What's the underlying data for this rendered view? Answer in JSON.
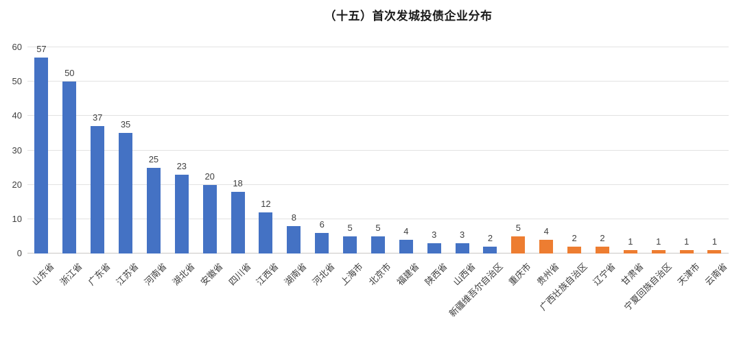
{
  "page": {
    "background": "#FFFFFF"
  },
  "chart_data": {
    "type": "bar",
    "title": "（十五）首次发城投债企业分布",
    "categories": [
      "山东省",
      "浙江省",
      "广东省",
      "江苏省",
      "河南省",
      "湖北省",
      "安徽省",
      "四川省",
      "江西省",
      "湖南省",
      "河北省",
      "上海市",
      "北京市",
      "福建省",
      "陕西省",
      "山西省",
      "新疆维吾尔自治区",
      "重庆市",
      "贵州省",
      "广西壮族自治区",
      "辽宁省",
      "甘肃省",
      "宁夏回族自治区",
      "天津市",
      "云南省"
    ],
    "values": [
      57,
      50,
      37,
      35,
      25,
      23,
      20,
      18,
      12,
      8,
      6,
      5,
      5,
      4,
      3,
      3,
      2,
      5,
      4,
      2,
      2,
      1,
      1,
      1,
      1
    ],
    "bar_colors": [
      "#4472C4",
      "#4472C4",
      "#4472C4",
      "#4472C4",
      "#4472C4",
      "#4472C4",
      "#4472C4",
      "#4472C4",
      "#4472C4",
      "#4472C4",
      "#4472C4",
      "#4472C4",
      "#4472C4",
      "#4472C4",
      "#4472C4",
      "#4472C4",
      "#4472C4",
      "#ED7D31",
      "#ED7D31",
      "#ED7D31",
      "#ED7D31",
      "#ED7D31",
      "#ED7D31",
      "#ED7D31",
      "#ED7D31"
    ],
    "xlabel": "",
    "ylabel": "",
    "ylim": [
      0,
      60
    ],
    "yticks": [
      0,
      10,
      20,
      30,
      40,
      50,
      60
    ],
    "grid": true,
    "legend": false,
    "value_labels_shown": true,
    "x_label_rotation_deg": 45,
    "colors": {
      "bar_primary": "#4472C4",
      "bar_secondary": "#ED7D31",
      "gridline": "#E2E2E2",
      "axis_line": "#C9C6C4",
      "tick_text": "#404040",
      "title_text": "#1A1A1A",
      "background": "#FFFFFF"
    }
  }
}
